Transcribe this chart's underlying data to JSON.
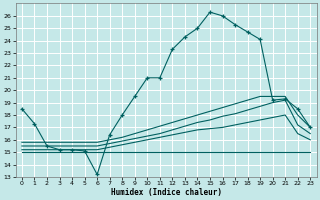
{
  "xlabel": "Humidex (Indice chaleur)",
  "background_color": "#c5e8e8",
  "grid_color": "#ffffff",
  "line_color": "#006060",
  "xlim": [
    -0.5,
    23.5
  ],
  "ylim": [
    13,
    27
  ],
  "xticks": [
    0,
    1,
    2,
    3,
    4,
    5,
    6,
    7,
    8,
    9,
    10,
    11,
    12,
    13,
    14,
    15,
    16,
    17,
    18,
    19,
    20,
    21,
    22,
    23
  ],
  "yticks": [
    13,
    14,
    15,
    16,
    17,
    18,
    19,
    20,
    21,
    22,
    23,
    24,
    25,
    26
  ],
  "main_x": [
    0,
    1,
    2,
    3,
    4,
    5,
    6,
    7,
    8,
    9,
    10,
    11,
    12,
    13,
    14,
    15,
    16,
    17,
    18,
    19,
    20,
    21,
    22,
    23
  ],
  "main_y": [
    18.5,
    17.3,
    15.5,
    15.2,
    15.2,
    15.1,
    13.2,
    16.4,
    18.0,
    19.5,
    21.0,
    21.0,
    23.3,
    24.3,
    25.0,
    26.3,
    26.0,
    25.3,
    24.7,
    24.1,
    19.2,
    19.3,
    18.5,
    17.0
  ],
  "line_a_x": [
    0,
    1,
    2,
    3,
    4,
    5,
    6,
    7,
    8,
    9,
    10,
    11,
    12,
    13,
    14,
    15,
    16,
    17,
    18,
    19,
    20,
    21,
    22,
    23
  ],
  "line_a_y": [
    15.0,
    15.0,
    15.0,
    15.0,
    15.0,
    15.0,
    15.0,
    15.0,
    15.0,
    15.0,
    15.0,
    15.0,
    15.0,
    15.0,
    15.0,
    15.0,
    15.0,
    15.0,
    15.0,
    15.0,
    15.0,
    15.0,
    15.0,
    15.0
  ],
  "line_b_x": [
    0,
    1,
    2,
    3,
    4,
    5,
    6,
    7,
    8,
    9,
    10,
    11,
    12,
    13,
    14,
    15,
    16,
    17,
    18,
    19,
    20,
    21,
    22,
    23
  ],
  "line_b_y": [
    15.2,
    15.2,
    15.2,
    15.2,
    15.2,
    15.2,
    15.2,
    15.4,
    15.6,
    15.8,
    16.0,
    16.2,
    16.4,
    16.6,
    16.8,
    16.9,
    17.0,
    17.2,
    17.4,
    17.6,
    17.8,
    18.0,
    16.5,
    16.0
  ],
  "line_c_x": [
    0,
    1,
    2,
    3,
    4,
    5,
    6,
    7,
    8,
    9,
    10,
    11,
    12,
    13,
    14,
    15,
    16,
    17,
    18,
    19,
    20,
    21,
    22,
    23
  ],
  "line_c_y": [
    15.5,
    15.5,
    15.5,
    15.5,
    15.5,
    15.5,
    15.5,
    15.7,
    15.9,
    16.1,
    16.3,
    16.5,
    16.8,
    17.1,
    17.4,
    17.6,
    17.9,
    18.1,
    18.4,
    18.7,
    19.0,
    19.2,
    17.2,
    16.5
  ],
  "line_d_x": [
    0,
    1,
    2,
    3,
    4,
    5,
    6,
    7,
    8,
    9,
    10,
    11,
    12,
    13,
    14,
    15,
    16,
    17,
    18,
    19,
    20,
    21,
    22,
    23
  ],
  "line_d_y": [
    15.8,
    15.8,
    15.8,
    15.8,
    15.8,
    15.8,
    15.8,
    16.0,
    16.2,
    16.5,
    16.8,
    17.1,
    17.4,
    17.7,
    18.0,
    18.3,
    18.6,
    18.9,
    19.2,
    19.5,
    19.5,
    19.5,
    18.0,
    17.0
  ]
}
